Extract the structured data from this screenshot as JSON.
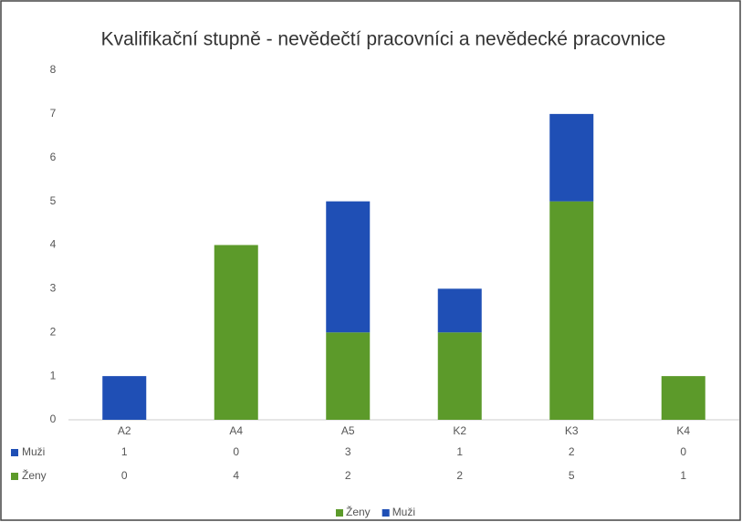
{
  "chart_data": {
    "type": "bar",
    "stacked": true,
    "title": "Kvalifikační stupně - nevědečtí pracovníci a nevědecké pracovnice",
    "categories": [
      "A2",
      "A4",
      "A5",
      "K2",
      "K3",
      "K4"
    ],
    "series": [
      {
        "name": "Ženy",
        "color": "#5c9a2a",
        "values": [
          0,
          4,
          2,
          2,
          5,
          1
        ]
      },
      {
        "name": "Muži",
        "color": "#1f4fb5",
        "values": [
          1,
          0,
          3,
          1,
          2,
          0
        ]
      }
    ],
    "ylim": [
      0,
      8
    ],
    "yticks": [
      0,
      1,
      2,
      3,
      4,
      5,
      6,
      7,
      8
    ],
    "grid": false,
    "legend": "bottom",
    "data_table": true
  }
}
